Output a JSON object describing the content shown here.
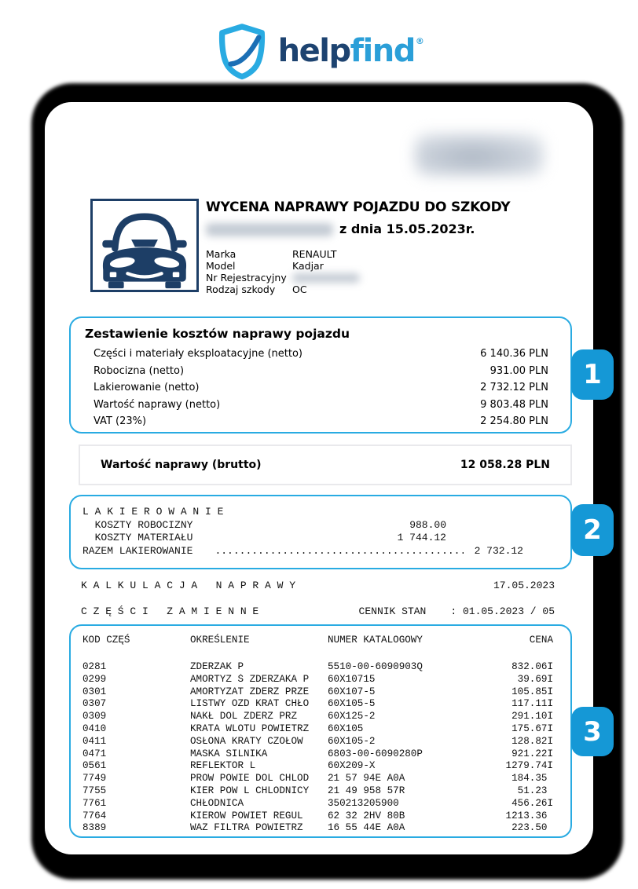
{
  "colors": {
    "accent_blue": "#29abe2",
    "badge_blue": "#1598d6",
    "navy": "#1d3e66",
    "logo_help_blue": "#1d4370",
    "logo_find_blue": "#2b9fd8"
  },
  "logo": {
    "brand_help": "help",
    "brand_find": "find",
    "registered_mark": "®"
  },
  "header": {
    "title": "WYCENA NAPRAWY POJAZDU DO SZKODY",
    "date_line": "z dnia 15.05.2023r.",
    "details": [
      {
        "label": "Marka",
        "value": "RENAULT",
        "redacted": false
      },
      {
        "label": "Model",
        "value": "Kadjar",
        "redacted": false
      },
      {
        "label": "Nr Rejestracyjny",
        "value": "",
        "redacted": true
      },
      {
        "label": "Rodzaj szkody",
        "value": "OC",
        "redacted": false
      }
    ]
  },
  "summary_box": {
    "title": "Zestawienie kosztów naprawy pojazdu",
    "rows": [
      {
        "label": "Części i materiały eksploatacyjne (netto)",
        "value": "6 140.36 PLN"
      },
      {
        "label": "Robocizna (netto)",
        "value": "931.00 PLN"
      },
      {
        "label": "Lakierowanie (netto)",
        "value": "2 732.12 PLN"
      },
      {
        "label": "Wartość naprawy (netto)",
        "value": "9 803.48 PLN"
      },
      {
        "label": "VAT (23%)",
        "value": "2 254.80 PLN"
      }
    ]
  },
  "brutto_row": {
    "label": "Wartość naprawy (brutto)",
    "value": "12 058.28 PLN"
  },
  "lakierowanie_box": {
    "title": "L A K I E R O W A N I E",
    "rows": [
      {
        "label": "  KOSZTY ROBOCIZNY",
        "value": "988.00"
      },
      {
        "label": "  KOSZTY MATERIAŁU",
        "value": "1 744.12"
      }
    ],
    "total": {
      "label": "RAZEM LAKIEROWANIE",
      "dots": "..............................................................",
      "value": "2 732.12"
    }
  },
  "kalkulacja": {
    "title": "K A L K U L A C J A   N A P R A W Y",
    "date": "17.05.2023"
  },
  "czesci_zamienne": {
    "title": "C Z Ę Ś C I   Z A M I E N N E",
    "cennik_label": "CENNIK STAN",
    "cennik_value": ": 01.05.2023 / 05"
  },
  "parts_table": {
    "headers": [
      "KOD CZĘŚ",
      "OKREŚLENIE",
      "NUMER KATALOGOWY",
      "CENA"
    ],
    "rows": [
      {
        "code": "0281",
        "name": "ZDERZAK P",
        "catalog": "5510-00-6090903Q",
        "price": "832.06I"
      },
      {
        "code": "0299",
        "name": "AMORTYZ Ś ZDERZAKA P",
        "catalog": "60X10715",
        "price": "39.69I"
      },
      {
        "code": "0301",
        "name": "AMORTYZAT ZDERZ PRZE",
        "catalog": "60X107-5",
        "price": "105.85I"
      },
      {
        "code": "0307",
        "name": "LISTWY OZD KRAT CHŁO",
        "catalog": "60X105-5",
        "price": "117.11I"
      },
      {
        "code": "0309",
        "name": "NAKŁ DOL ZDERZ PRZ",
        "catalog": "60X125-2",
        "price": "291.10I"
      },
      {
        "code": "0410",
        "name": "KRATA WLOTU POWIETRZ",
        "catalog": "60X105",
        "price": "175.67I"
      },
      {
        "code": "0411",
        "name": "OSŁONA KRATY CZOŁOW",
        "catalog": "60X105-2",
        "price": "128.82I"
      },
      {
        "code": "0471",
        "name": "MASKA SILNIKA",
        "catalog": "6803-00-6090280P",
        "price": "921.22I"
      },
      {
        "code": "0561",
        "name": "REFLEKTOR L",
        "catalog": "60X209-X",
        "price": "1279.74I"
      },
      {
        "code": "7749",
        "name": "PROW POWIE DOL CHLOD",
        "catalog": "21 57 94E A0A",
        "price": "184.35 "
      },
      {
        "code": "7755",
        "name": "KIER POW L CHLODNICY",
        "catalog": "21 49 958 57R",
        "price": "51.23 "
      },
      {
        "code": "7761",
        "name": "CHŁODNICA",
        "catalog": "350213205900",
        "price": "456.26I"
      },
      {
        "code": "7764",
        "name": "KIEROW POWIET REGUL",
        "catalog": "62 32 2HV 80B",
        "price": "1213.36 "
      },
      {
        "code": "8389",
        "name": "WAZ FILTRA POWIETRZ",
        "catalog": "16 55 44E A0A",
        "price": "223.50 "
      }
    ]
  },
  "badges": [
    "1",
    "2",
    "3"
  ]
}
